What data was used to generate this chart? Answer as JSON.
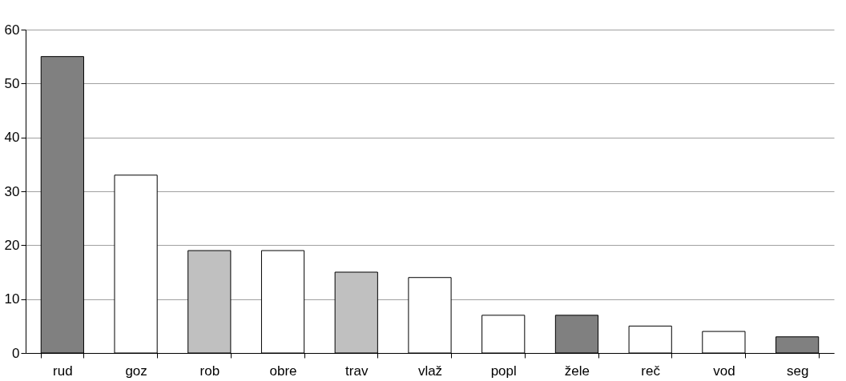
{
  "chart_data": {
    "type": "bar",
    "categories": [
      "rud",
      "goz",
      "rob",
      "obre",
      "trav",
      "vlaž",
      "popl",
      "žele",
      "reč",
      "vod",
      "seg"
    ],
    "values": [
      55,
      33,
      19,
      19,
      15,
      14,
      7,
      7,
      5,
      4,
      3
    ],
    "colors": [
      "#808080",
      "#ffffff",
      "#c0c0c0",
      "#ffffff",
      "#c0c0c0",
      "#ffffff",
      "#ffffff",
      "#808080",
      "#ffffff",
      "#ffffff",
      "#808080"
    ],
    "ylim": [
      0,
      60
    ],
    "yticks": [
      0,
      10,
      20,
      30,
      40,
      50,
      60
    ],
    "grid": "y"
  }
}
